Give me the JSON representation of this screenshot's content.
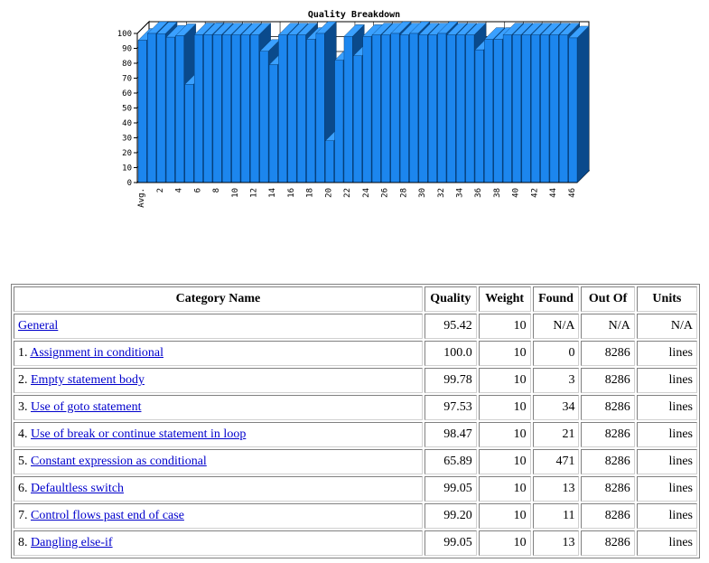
{
  "chart_data": {
    "type": "bar",
    "title": "Quality Breakdown",
    "xlabel": "",
    "ylabel": "",
    "ylim": [
      0,
      100
    ],
    "yticks": [
      0,
      10,
      20,
      30,
      40,
      50,
      60,
      70,
      80,
      90,
      100
    ],
    "categories": [
      "Avg.",
      "1",
      "2",
      "3",
      "4",
      "5",
      "6",
      "7",
      "8",
      "9",
      "10",
      "11",
      "12",
      "13",
      "14",
      "15",
      "16",
      "17",
      "18",
      "19",
      "20",
      "21",
      "22",
      "23",
      "24",
      "25",
      "26",
      "27",
      "28",
      "29",
      "30",
      "31",
      "32",
      "33",
      "34",
      "35",
      "36",
      "37",
      "38",
      "39",
      "40",
      "41",
      "42",
      "43",
      "44",
      "45",
      "46"
    ],
    "xtick_labels": [
      "Avg.",
      "2",
      "4",
      "6",
      "8",
      "10",
      "12",
      "14",
      "16",
      "18",
      "20",
      "22",
      "24",
      "26",
      "28",
      "30",
      "32",
      "34",
      "36",
      "38",
      "40",
      "42",
      "44",
      "46"
    ],
    "values": [
      95.4,
      100,
      99.8,
      97.5,
      98.5,
      65.9,
      99.1,
      99.2,
      99.1,
      99.0,
      99.0,
      99.0,
      99.0,
      88.0,
      79.0,
      99.0,
      99.0,
      99.0,
      96.0,
      100,
      28.0,
      82.0,
      98.0,
      85.0,
      98.0,
      99.0,
      99.0,
      100,
      99.0,
      100,
      99.0,
      99.0,
      100,
      99.0,
      99.0,
      99.0,
      89.0,
      96.0,
      96.0,
      99.0,
      99.0,
      99.0,
      99.0,
      99.0,
      99.0,
      99.0,
      97.0
    ],
    "bar_color": "#1c86ee",
    "side_color": "#0a4a8c",
    "grid": true
  },
  "table": {
    "headers": [
      "Category Name",
      "Quality",
      "Weight",
      "Found",
      "Out Of",
      "Units"
    ],
    "rows": [
      {
        "prefix": "",
        "name": "General",
        "quality": "95.42",
        "weight": "10",
        "found": "N/A",
        "outof": "N/A",
        "units": "N/A"
      },
      {
        "prefix": "1. ",
        "name": "Assignment in conditional",
        "quality": "100.0",
        "weight": "10",
        "found": "0",
        "outof": "8286",
        "units": "lines"
      },
      {
        "prefix": "2. ",
        "name": "Empty statement body",
        "quality": "99.78",
        "weight": "10",
        "found": "3",
        "outof": "8286",
        "units": "lines"
      },
      {
        "prefix": "3. ",
        "name": "Use of goto statement",
        "quality": "97.53",
        "weight": "10",
        "found": "34",
        "outof": "8286",
        "units": "lines"
      },
      {
        "prefix": "4. ",
        "name": "Use of break or continue statement in loop",
        "quality": "98.47",
        "weight": "10",
        "found": "21",
        "outof": "8286",
        "units": "lines"
      },
      {
        "prefix": "5. ",
        "name": "Constant expression as conditional",
        "quality": "65.89",
        "weight": "10",
        "found": "471",
        "outof": "8286",
        "units": "lines"
      },
      {
        "prefix": "6. ",
        "name": "Defaultless switch",
        "quality": "99.05",
        "weight": "10",
        "found": "13",
        "outof": "8286",
        "units": "lines"
      },
      {
        "prefix": "7. ",
        "name": "Control flows past end of case",
        "quality": "99.20",
        "weight": "10",
        "found": "11",
        "outof": "8286",
        "units": "lines"
      },
      {
        "prefix": "8. ",
        "name": "Dangling else-if",
        "quality": "99.05",
        "weight": "10",
        "found": "13",
        "outof": "8286",
        "units": "lines"
      }
    ]
  }
}
